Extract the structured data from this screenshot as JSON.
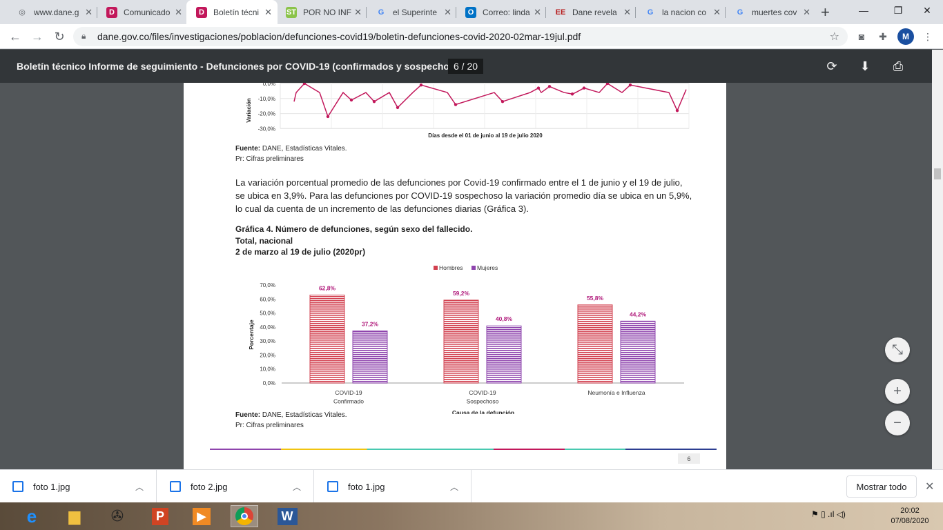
{
  "tabs": [
    {
      "label": "www.dane.g",
      "icon": "globe-icon",
      "color": "#5f6368",
      "glyph": "◎"
    },
    {
      "label": "Comunicado",
      "icon": "dane-logo-icon",
      "color": "#c2185b",
      "glyph": "D"
    },
    {
      "label": "Boletín técni",
      "icon": "dane-logo-icon",
      "color": "#c2185b",
      "glyph": "D",
      "active": true
    },
    {
      "label": "POR NO INF",
      "icon": "st-logo-icon",
      "color": "#8bc34a",
      "glyph": "ST"
    },
    {
      "label": "el Superinte",
      "icon": "google-icon",
      "color": "#4285f4",
      "glyph": "G"
    },
    {
      "label": "Correo: linda",
      "icon": "outlook-icon",
      "color": "#0072c6",
      "glyph": "O"
    },
    {
      "label": "Dane revela",
      "icon": "ee-logo-icon",
      "color": "#b71c1c",
      "glyph": "EE"
    },
    {
      "label": "la nacion co",
      "icon": "google-icon",
      "color": "#4285f4",
      "glyph": "G"
    },
    {
      "label": "muertes cov",
      "icon": "google-icon",
      "color": "#4285f4",
      "glyph": "G"
    }
  ],
  "address": {
    "url": "dane.gov.co/files/investigaciones/poblacion/defunciones-covid19/boletin-defunciones-covid-2020-02mar-19jul.pdf"
  },
  "profile_initial": "M",
  "pdf": {
    "title": "Boletín técnico Informe de seguimiento - Defunciones por COVID-19 (confirmados y sospechosos),...",
    "page_indicator": "6 / 20",
    "page_number": "6"
  },
  "content": {
    "top_chart_axis_label": "Variación",
    "top_chart_xlabel": "Días desde el 01 de junio al 19 de julio 2020",
    "source1_label": "Fuente:",
    "source1_text": " DANE, Estadísticas Vitales.",
    "prelim1": "Pr: Cifras preliminares",
    "paragraph_line1": "La variación porcentual promedio de las defunciones por Covid-19 confirmado entre el 1 de junio y el 19 de julio,",
    "paragraph_line2": "se ubica en 3,9%. Para las defunciones por COVID-19 sospechoso la variación promedio día se ubica en un 5,9%,",
    "paragraph_line3": "lo cual da cuenta de un incremento de las defunciones diarias (Gráfica 3).",
    "chart_title1": "Gráfica 4. Número de defunciones, según sexo del fallecido.",
    "chart_title2": "Total, nacional",
    "chart_title3": "2 de marzo al 19 de julio (2020pr)",
    "source2_label": "Fuente:",
    "source2_text": " DANE, Estadísticas Vitales.",
    "prelim2": "Pr: Cifras preliminares"
  },
  "chart_data": [
    {
      "type": "line",
      "xlabel": "Días desde el 01 de junio al 19 de julio 2020",
      "ylabel": "Variación",
      "y_ticks": [
        "0,0%",
        "-10,0%",
        "-20,0%",
        "-30,0%"
      ],
      "ylim": [
        -30,
        5
      ],
      "color": "#c2185b",
      "visible_points": [
        {
          "x": 1,
          "y": 0
        },
        {
          "x": 2,
          "y": -22
        },
        {
          "x": 3,
          "y": -11
        },
        {
          "x": 4,
          "y": -12
        },
        {
          "x": 5,
          "y": -16
        },
        {
          "x": 6,
          "y": -1
        },
        {
          "x": 7,
          "y": -14
        },
        {
          "x": 8,
          "y": -12
        },
        {
          "x": 9,
          "y": -3
        },
        {
          "x": 10,
          "y": -2
        },
        {
          "x": 11,
          "y": -7
        },
        {
          "x": 12,
          "y": -3
        },
        {
          "x": 13,
          "y": 0
        },
        {
          "x": 14,
          "y": -1
        },
        {
          "x": 15,
          "y": -18
        }
      ]
    },
    {
      "type": "bar",
      "legend": [
        "Hombres",
        "Mujeres"
      ],
      "legend_position": "top",
      "categories": [
        "COVID-19|Confirmado",
        "COVID-19|Sospechoso",
        "Neumonía e Influenza"
      ],
      "series": [
        {
          "name": "Hombres",
          "values": [
            62.8,
            59.2,
            55.8
          ],
          "labels": [
            "62,8%",
            "59,2%",
            "55,8%"
          ],
          "color": "#d2404f"
        },
        {
          "name": "Mujeres",
          "values": [
            37.2,
            40.8,
            44.2
          ],
          "labels": [
            "37,2%",
            "40,8%",
            "44,2%"
          ],
          "color": "#8e44ad"
        }
      ],
      "y_ticks": [
        "0,0%",
        "10,0%",
        "20,0%",
        "30,0%",
        "40,0%",
        "50,0%",
        "60,0%",
        "70,0%"
      ],
      "ylim": [
        0,
        70
      ],
      "ylabel": "Porcentaje",
      "xlabel": "Causa de la defunción",
      "label_color": "#b0187a"
    }
  ],
  "downloads": {
    "items": [
      "foto 1.jpg",
      "foto 2.jpg",
      "foto 1.jpg"
    ],
    "show_all": "Mostrar todo"
  },
  "taskbar": {
    "time": "20:02",
    "date": "07/08/2020"
  }
}
